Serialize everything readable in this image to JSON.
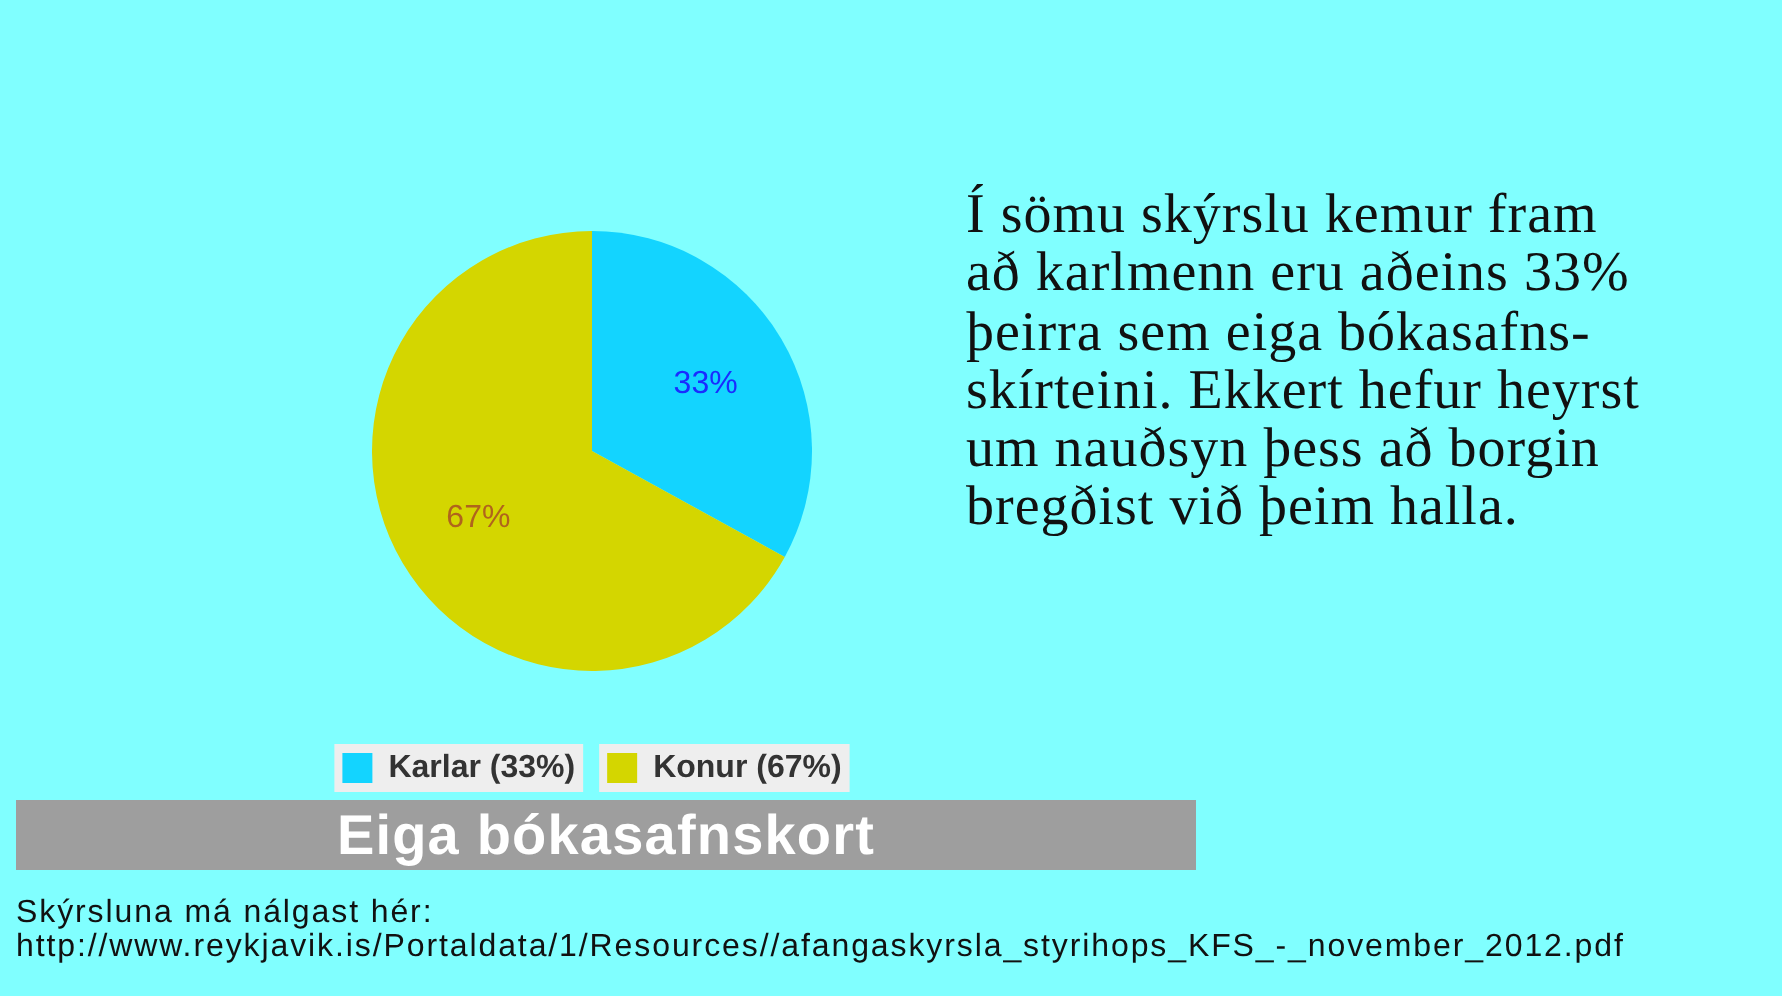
{
  "chart_data": {
    "type": "pie",
    "title": "Eiga bókasafnskort",
    "categories": [
      "Karlar (33%)",
      "Konur (67%)"
    ],
    "values": [
      33,
      67
    ],
    "colors": [
      "#13d4ff",
      "#d4d600"
    ],
    "value_labels": [
      "33%",
      "67%"
    ],
    "legend": "bottom",
    "annotations": [
      "Í sömu skýrslu kemur fram\nað karlmenn eru aðeins 33%\nþeirra sem eiga bókasafns-\nskírteini. Ekkert hefur heyrst\num nauðsyn þess að borgin\nbregðist við þeim halla.",
      "Skýrsluna má nálgast hér:",
      "http://www.reykjavik.is/Portaldata/1/Resources//afangaskyrsla_styrihops_KFS_-_november_2012.pdf"
    ]
  }
}
